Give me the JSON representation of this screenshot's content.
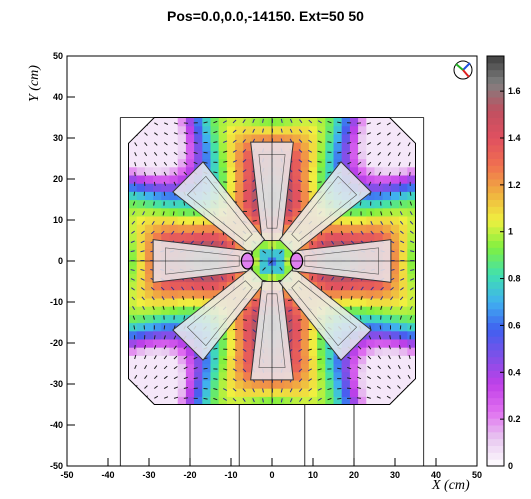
{
  "chart_data": {
    "type": "heatmap",
    "title": "Pos=0.0,0.0,-14150. Ext=50 50",
    "xlabel": "X (cm)",
    "ylabel": "Y (cm)",
    "xlim": [
      -50,
      50
    ],
    "ylim": [
      -50,
      50
    ],
    "x_ticks": [
      "-50",
      "-40",
      "-30",
      "-20",
      "-10",
      "0",
      "10",
      "20",
      "30",
      "40",
      "50"
    ],
    "y_ticks": [
      "-50",
      "-40",
      "-30",
      "-20",
      "-10",
      "0",
      "10",
      "20",
      "30",
      "40",
      "50"
    ],
    "colorbar": {
      "range": [
        0,
        1.75
      ],
      "ticks": [
        "0",
        "0.2",
        "0.4",
        "0.6",
        "0.8",
        "1",
        "1.2",
        "1.4",
        "1.6"
      ],
      "colors": [
        "#ffffff",
        "#e8c8f0",
        "#e070f0",
        "#c040e8",
        "#8050e8",
        "#4060f0",
        "#40b0f0",
        "#40e0b0",
        "#80f040",
        "#f0f040",
        "#f0b040",
        "#f07050",
        "#e05060",
        "#c05060",
        "#808080",
        "#404040"
      ]
    },
    "magnet_coils": 8,
    "octagon_halfwidth": 35,
    "field_arrows": true,
    "gizmo_icon": "xyz-axes-icon"
  }
}
